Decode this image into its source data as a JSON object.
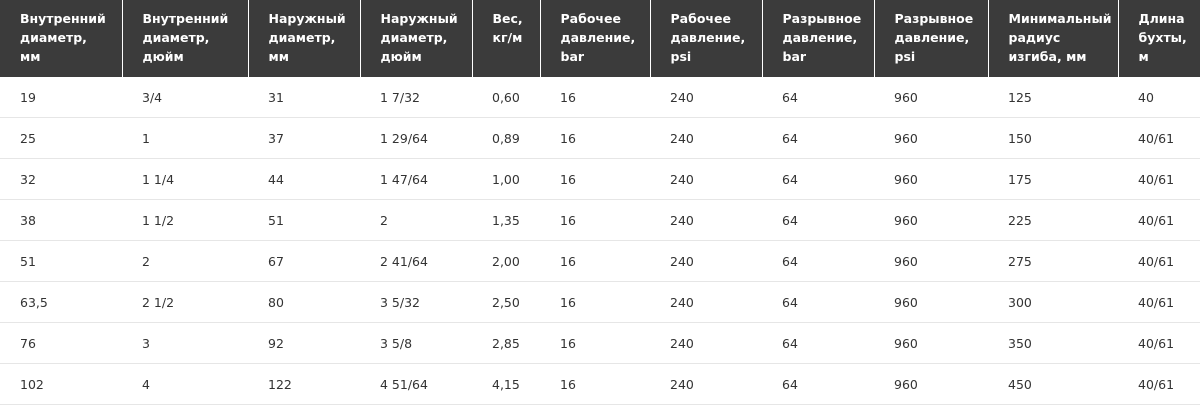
{
  "table": {
    "headers": [
      "Внутренний\nдиаметр,\nмм",
      "Внутренний\nдиаметр,\nдюйм",
      "Наружный\nдиаметр,\nмм",
      "Наружный\nдиаметр,\nдюйм",
      "Вес,\nкг/м",
      "Рабочее\nдавление,\nbar",
      "Рабочее\nдавление,\npsi",
      "Разрывное\nдавление,\nbar",
      "Разрывное\nдавление,\npsi",
      "Минимальный\nрадиус\nизгиба, мм",
      "Длина\nбухты,\nм"
    ],
    "rows": [
      [
        "19",
        "3/4",
        "31",
        "1 7/32",
        "0,60",
        "16",
        "240",
        "64",
        "960",
        "125",
        "40"
      ],
      [
        "25",
        "1",
        "37",
        "1 29/64",
        "0,89",
        "16",
        "240",
        "64",
        "960",
        "150",
        "40/61"
      ],
      [
        "32",
        "1 1/4",
        "44",
        "1 47/64",
        "1,00",
        "16",
        "240",
        "64",
        "960",
        "175",
        "40/61"
      ],
      [
        "38",
        "1 1/2",
        "51",
        "2",
        "1,35",
        "16",
        "240",
        "64",
        "960",
        "225",
        "40/61"
      ],
      [
        "51",
        "2",
        "67",
        "2 41/64",
        "2,00",
        "16",
        "240",
        "64",
        "960",
        "275",
        "40/61"
      ],
      [
        "63,5",
        "2 1/2",
        "80",
        "3 5/32",
        "2,50",
        "16",
        "240",
        "64",
        "960",
        "300",
        "40/61"
      ],
      [
        "76",
        "3",
        "92",
        "3 5/8",
        "2,85",
        "16",
        "240",
        "64",
        "960",
        "350",
        "40/61"
      ],
      [
        "102",
        "4",
        "122",
        "4 51/64",
        "4,15",
        "16",
        "240",
        "64",
        "960",
        "450",
        "40/61"
      ]
    ]
  }
}
